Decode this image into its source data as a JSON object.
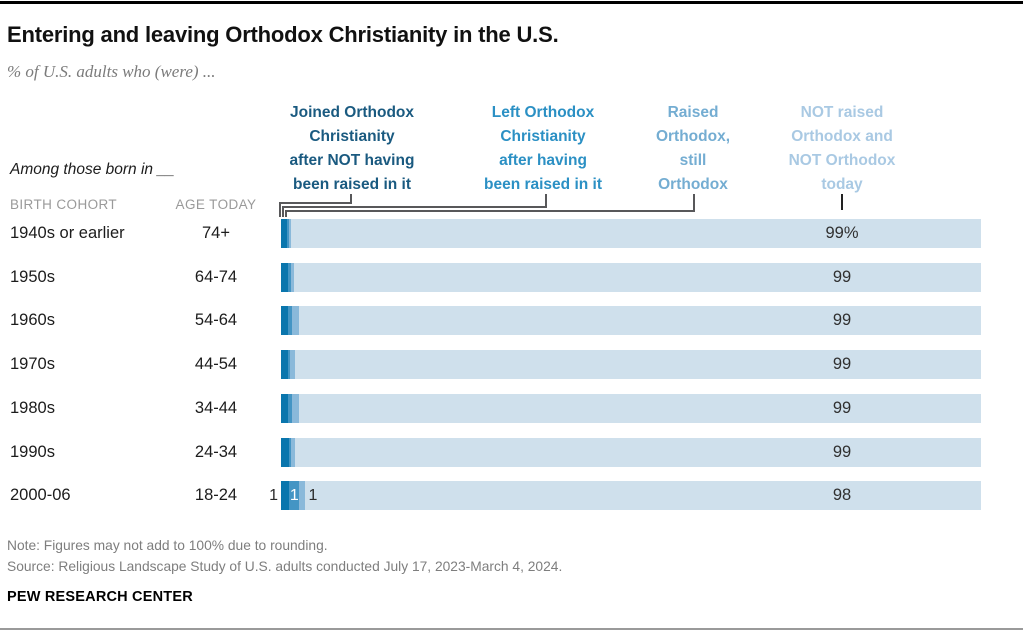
{
  "page": {
    "title": "Entering and leaving Orthodox Christianity in the U.S.",
    "subtitle": "% of U.S. adults who (were) ...",
    "among_label": "Among those born in __",
    "birth_cohort_caption": "BIRTH COHORT",
    "age_today_caption": "AGE TODAY",
    "note": "Note: Figures may not add to 100% due to rounding.",
    "source": "Source: Religious Landscape Study of U.S. adults conducted July 17, 2023-March 4, 2024.",
    "footer": "PEW RESEARCH CENTER"
  },
  "colors": {
    "joined": "#0a76ad",
    "left": "#4495c4",
    "raised_still": "#8ab9da",
    "not_raised": "#cfe0ec",
    "header_joined": "#1a5a80",
    "header_left": "#2b90c4",
    "header_raised": "#74add2",
    "header_not_raised": "#a9c9e3"
  },
  "chart_data": {
    "type": "bar",
    "orientation": "horizontal_stacked",
    "unit": "percent of U.S. adults",
    "xlim": [
      0,
      100
    ],
    "grid": false,
    "legend_position": "column headers above bars",
    "categories": [
      "1940s or earlier",
      "1950s",
      "1960s",
      "1970s",
      "1980s",
      "1990s",
      "2000-06"
    ],
    "age_today": [
      "74+",
      "64-74",
      "54-64",
      "44-54",
      "34-44",
      "24-34",
      "18-24"
    ],
    "series": [
      {
        "name": "Joined Orthodox Christianity after NOT having been raised in it",
        "header_lines": [
          "Joined Orthodox",
          "Christianity",
          "after NOT having",
          "been raised in it"
        ],
        "color": "#0a76ad",
        "values": [
          0.9,
          1.0,
          1.0,
          1.0,
          1.0,
          1.1,
          1.2
        ],
        "labels": [
          "",
          "",
          "",
          "",
          "",
          "",
          "1"
        ]
      },
      {
        "name": "Left Orthodox Christianity after having been raised in it",
        "header_lines": [
          "Left Orthodox",
          "Christianity",
          "after having",
          "been raised in it"
        ],
        "color": "#4495c4",
        "values": [
          0.3,
          0.4,
          0.6,
          0.3,
          0.5,
          0.3,
          1.4
        ],
        "labels": [
          "",
          "",
          "",
          "",
          "",
          "",
          "1"
        ]
      },
      {
        "name": "Raised Orthodox, still Orthodox",
        "header_lines": [
          "Raised",
          "Orthodox,",
          "still",
          "Orthodox"
        ],
        "color": "#8ab9da",
        "values": [
          0.3,
          0.4,
          1.0,
          0.7,
          1.0,
          0.6,
          0.9
        ],
        "labels": [
          "",
          "",
          "",
          "",
          "",
          "",
          "1"
        ]
      },
      {
        "name": "NOT raised Orthodox and NOT Orthodox today",
        "header_lines": [
          "NOT raised",
          "Orthodox and",
          "NOT Orthodox",
          "today"
        ],
        "color": "#cfe0ec",
        "values": [
          99,
          99,
          99,
          99,
          99,
          99,
          98
        ],
        "labels": [
          "99%",
          "99",
          "99",
          "99",
          "99",
          "99",
          "98"
        ]
      }
    ]
  }
}
